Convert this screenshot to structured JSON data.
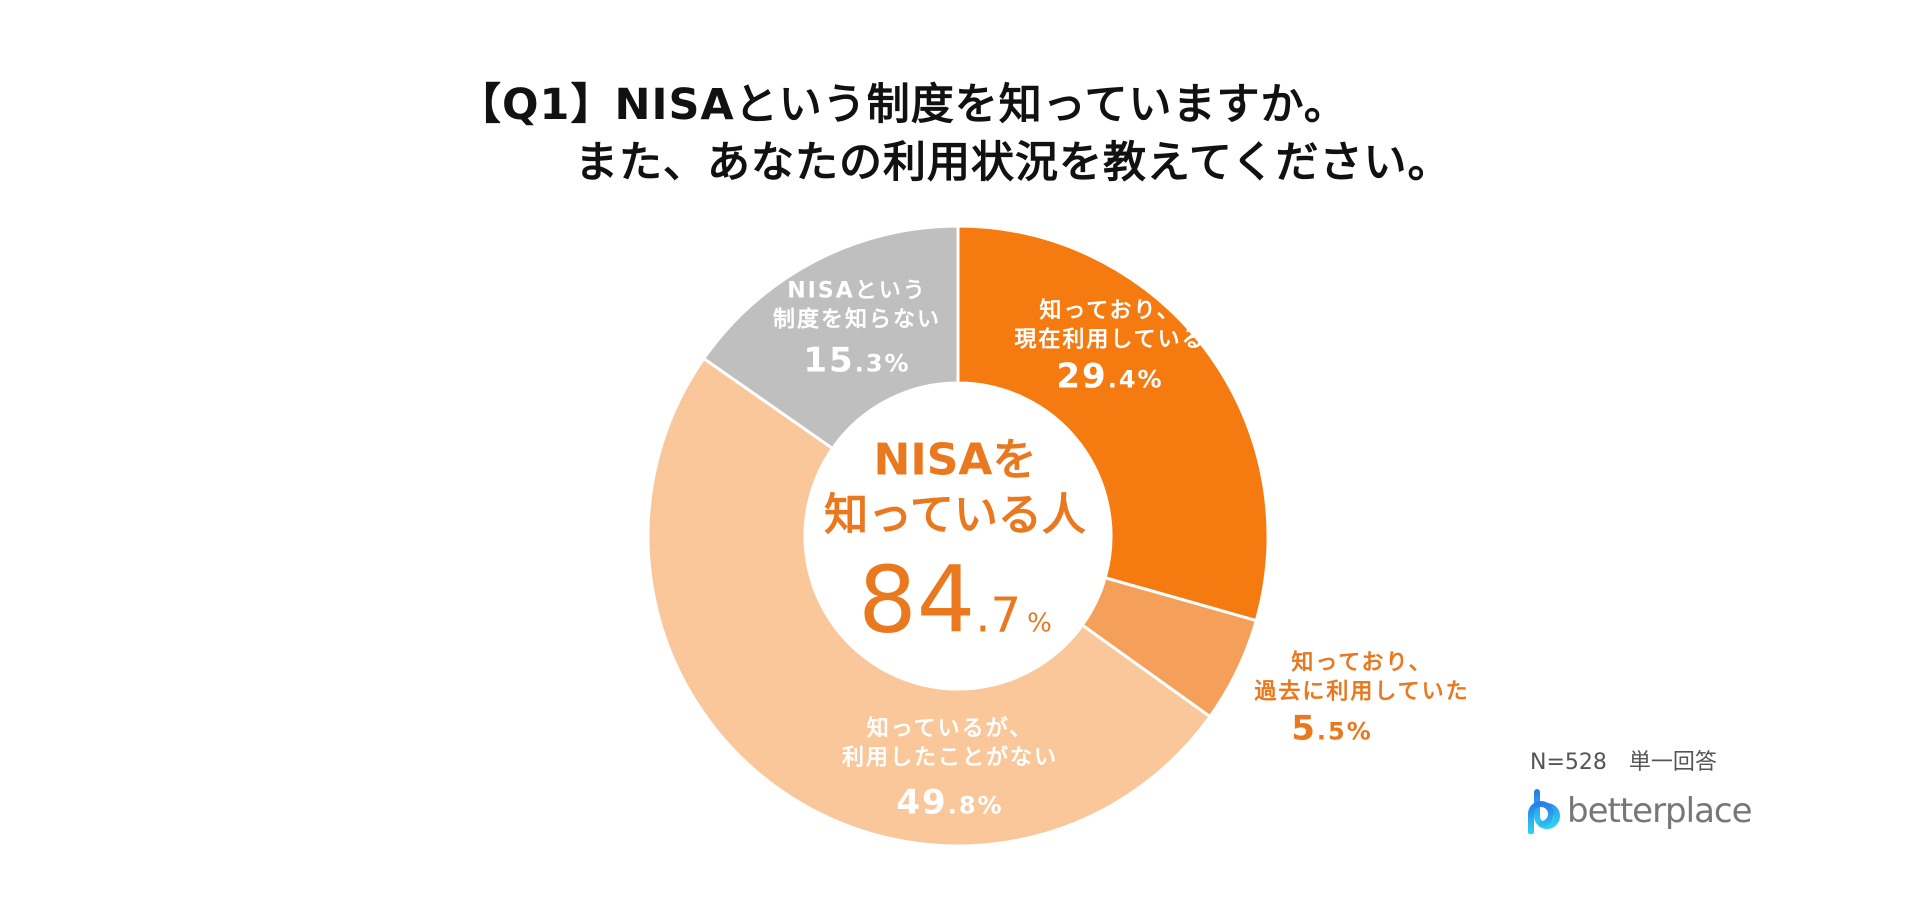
{
  "chart_data": {
    "type": "pie",
    "variant": "donut",
    "title": [
      "【Q1】NISAという制度を知っていますか。",
      "また、あなたの利用状況を教えてください。"
    ],
    "start": "12 o'clock, clockwise",
    "slices": [
      {
        "label": "知っており、現在利用している",
        "label_lines": [
          "知っており、",
          "現在利用している"
        ],
        "value": 29.4,
        "int": "29",
        "dec": ".4",
        "color": "#F57A10"
      },
      {
        "label": "知っており、過去に利用していた",
        "label_lines": [
          "知っており、",
          "過去に利用していた"
        ],
        "value": 5.5,
        "int": "5",
        "dec": ".5",
        "color": "#F5A05A"
      },
      {
        "label": "知っているが、利用したことがない",
        "label_lines": [
          "知っているが、",
          "利用したことがない"
        ],
        "value": 49.8,
        "int": "49",
        "dec": ".8",
        "color": "#FAC79A"
      },
      {
        "label": "NISAという制度を知らない",
        "label_lines": [
          "NISAという",
          "制度を知らない"
        ],
        "value": 15.3,
        "int": "15",
        "dec": ".3",
        "color": "#BFBFBF"
      }
    ],
    "center": {
      "line1": "NISAを",
      "line2": "知っている人",
      "int": "84",
      "dec": ".7",
      "unit": "%",
      "color": "#E9781F"
    },
    "unit": "%"
  },
  "note": "N=528　単一回答",
  "logo": {
    "text": "betterplace",
    "mark_color": "#2A9BE8"
  }
}
